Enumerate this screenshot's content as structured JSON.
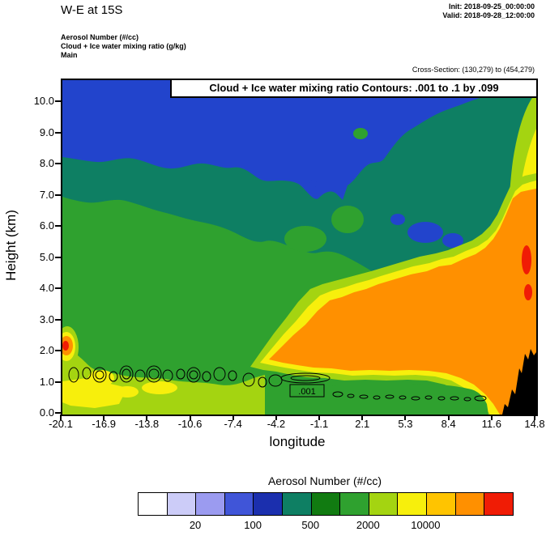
{
  "header": {
    "title": "W-E at 15S",
    "init": "Init: 2018-09-25_00:00:00",
    "valid": "Valid: 2018-09-28_12:00:00",
    "field1": "Aerosol Number  (#/cc)",
    "field2": "Cloud + Ice water mixing ratio   (g/kg)",
    "field3": "Main",
    "cross_section": "Cross-Section: (130,279) to (454,279)"
  },
  "chart_data": {
    "type": "heatmap",
    "title": "Cloud + Ice water mixing ratio Contours: .001 to .1 by .099",
    "xlabel": "longitude",
    "ylabel": "Height (km)",
    "x_ticks": [
      "-20.1",
      "-16.9",
      "-13.8",
      "-10.6",
      "-7.4",
      "-4.2",
      "-1.1",
      "2.1",
      "5.3",
      "8.4",
      "11.6",
      "14.8"
    ],
    "y_ticks": [
      "0.0",
      "1.0",
      "2.0",
      "3.0",
      "4.0",
      "5.0",
      "6.0",
      "7.0",
      "8.0",
      "9.0",
      "10.0"
    ],
    "xlim": [
      -20.1,
      14.8
    ],
    "ylim": [
      0.0,
      10.7
    ],
    "fill_field": "Aerosol Number (#/cc)",
    "contour_field": "Cloud + Ice water mixing ratio (g/kg)",
    "contour_levels": ".001 to .1 by .099",
    "contour_label": ".001",
    "palette": {
      "blue": "#2244cc",
      "teal": "#0e7f63",
      "green": "#2fa12f",
      "yellow_green": "#a4d411",
      "yellow": "#f7ef0c",
      "orange": "#ff9000",
      "red": "#f01c05",
      "black": "#000000"
    },
    "regions": [
      {
        "aerosol_level": "low (blue, ~100-200 #/cc)",
        "where": "upper levels ~8.3-10.7 km across west half, thinning to a band hugging the top east of lon 2, small pockets near lon 5-8 at 5.5-6.5 km"
      },
      {
        "aerosol_level": "moderate (teal, ~200-500 #/cc)",
        "where": "band between ~5 and 8.5 km, deepening to ~4.3 km between lon 2 and 11"
      },
      {
        "aerosol_level": "background (green, ~500-2000 #/cc)",
        "where": "most of the lower and middle troposphere, 0-7 km"
      },
      {
        "aerosol_level": "enhanced (yellow-green / yellow, ~2000-5000 #/cc)",
        "where": "rim of the polluted plume, shallow layer below ~1.5 km west of lon -10, and column along the east edge"
      },
      {
        "aerosol_level": "high (orange, ~5000-10000 #/cc)",
        "where": "plume from ~1.2 to 5 km between lon -4 and 14.8, rising to ~9-10 km at the east boundary"
      },
      {
        "aerosol_level": "very high (red, >10000 #/cc)",
        "where": "small cores near the east edge at ~3.5-5.5 km and a tiny spot at the west edge near 2.2 km"
      },
      {
        "terrain": "black topography below ~2.2 km east of lon ~11.5"
      },
      {
        "cloud_contours": "thin .001 g/kg cloud/ice ovals in a shallow layer 0.5-1.5 km between lon -19 and 11"
      }
    ],
    "colorbar": {
      "title": "Aerosol Number  (#/cc)",
      "colors": [
        "#ffffff",
        "#ccccf8",
        "#9b9bf0",
        "#4055d8",
        "#1b2fae",
        "#0e7f63",
        "#117b11",
        "#2fa12f",
        "#a4d411",
        "#f7ef0c",
        "#ffc400",
        "#ff9000",
        "#f01c05"
      ],
      "labels": [
        "20",
        "100",
        "500",
        "2000",
        "10000"
      ],
      "label_positions": [
        2,
        4,
        6,
        8,
        10
      ],
      "cells": 13
    }
  }
}
